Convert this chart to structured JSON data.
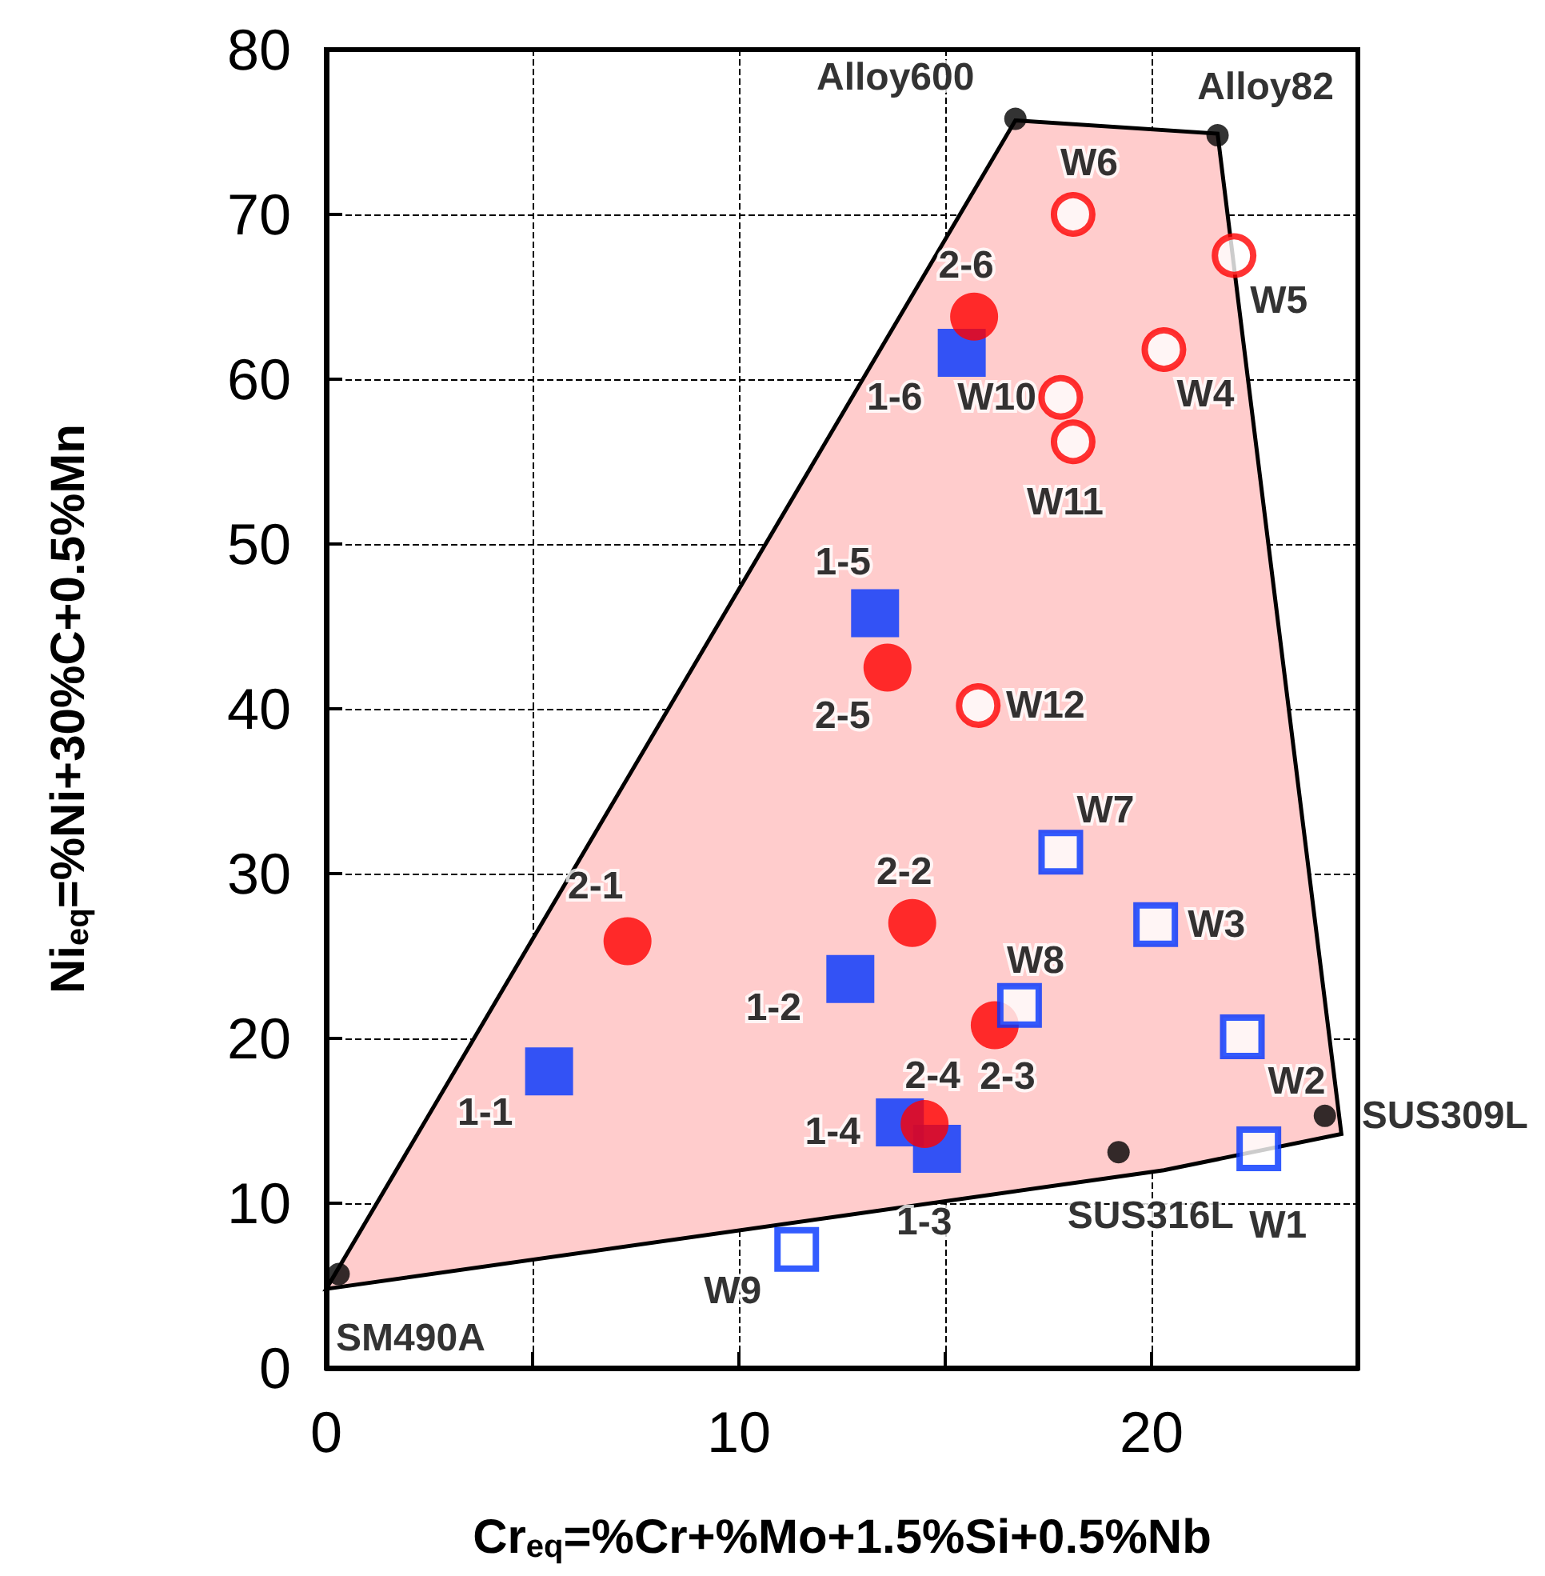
{
  "chart_data": {
    "type": "scatter",
    "xlabel": "Cr$_{eq}$=%Cr+%Mo+1.5%Si+0.5%Nb",
    "ylabel": "Ni$_{eq}$=%Ni+30%C+0.5%Mn",
    "xlim": [
      0,
      25
    ],
    "xticks": [
      0,
      {
        "value": 5,
        "label": null
      },
      10,
      {
        "value": 15,
        "label": null
      },
      20
    ],
    "ylim": [
      0,
      80
    ],
    "yticks": [
      0,
      10,
      20,
      30,
      40,
      50,
      60,
      70,
      80
    ],
    "grid": true,
    "series": [
      {
        "type": "area",
        "color": "#ffcccc",
        "x": [
          0,
          16.7,
          21.6,
          24.6,
          20.3,
          0
        ],
        "values": [
          4.8,
          75.7,
          74.9,
          14.2,
          12.0,
          4.8
        ]
      },
      {
        "color": "#000000",
        "marker": "circle",
        "x": [
          16.7,
          21.6,
          24.2,
          19.2,
          0.3
        ],
        "values": [
          75.8,
          74.8,
          15.3,
          13.1,
          5.7
        ],
        "value_labels": [
          "Alloy600",
          "Alloy82",
          "SUS309L",
          "SUS316L",
          "SM490A"
        ]
      },
      {
        "color": "#0033ff",
        "marker": "square",
        "x": [
          5.4,
          12.7,
          14.8,
          13.9,
          13.3,
          15.4
        ],
        "values": [
          18.0,
          23.6,
          13.3,
          14.9,
          45.8,
          61.6
        ],
        "value_labels": [
          "1-1",
          "1-2",
          "1-3",
          "1-4",
          "1-5",
          "1-6"
        ]
      },
      {
        "color": "#ff0000",
        "marker": "circle",
        "x": [
          7.3,
          14.2,
          16.2,
          14.5,
          13.6,
          15.7
        ],
        "values": [
          25.9,
          27.0,
          20.8,
          14.8,
          42.5,
          63.8
        ],
        "value_labels": [
          "2-1",
          "2-2",
          "2-3",
          "2-4",
          "2-5",
          "2-6"
        ]
      },
      {
        "color": "#ff0000",
        "marker": "circle",
        "x": [
          20.3,
          22.0,
          18.1,
          17.8,
          18.1,
          15.8
        ],
        "values": [
          61.8,
          67.5,
          70.0,
          58.9,
          56.2,
          40.2
        ],
        "value_labels": [
          "W4",
          "W5",
          "W6",
          "W10",
          "W11",
          "W12"
        ]
      },
      {
        "color": "#0033ff",
        "marker": "square",
        "x": [
          22.6,
          22.2,
          20.1,
          17.8,
          16.8,
          11.4
        ],
        "values": [
          13.3,
          20.1,
          26.9,
          31.3,
          22.0,
          7.2
        ],
        "value_labels": [
          "W1",
          "W2",
          "W3",
          "W7",
          "W8",
          "W9"
        ]
      }
    ]
  }
}
